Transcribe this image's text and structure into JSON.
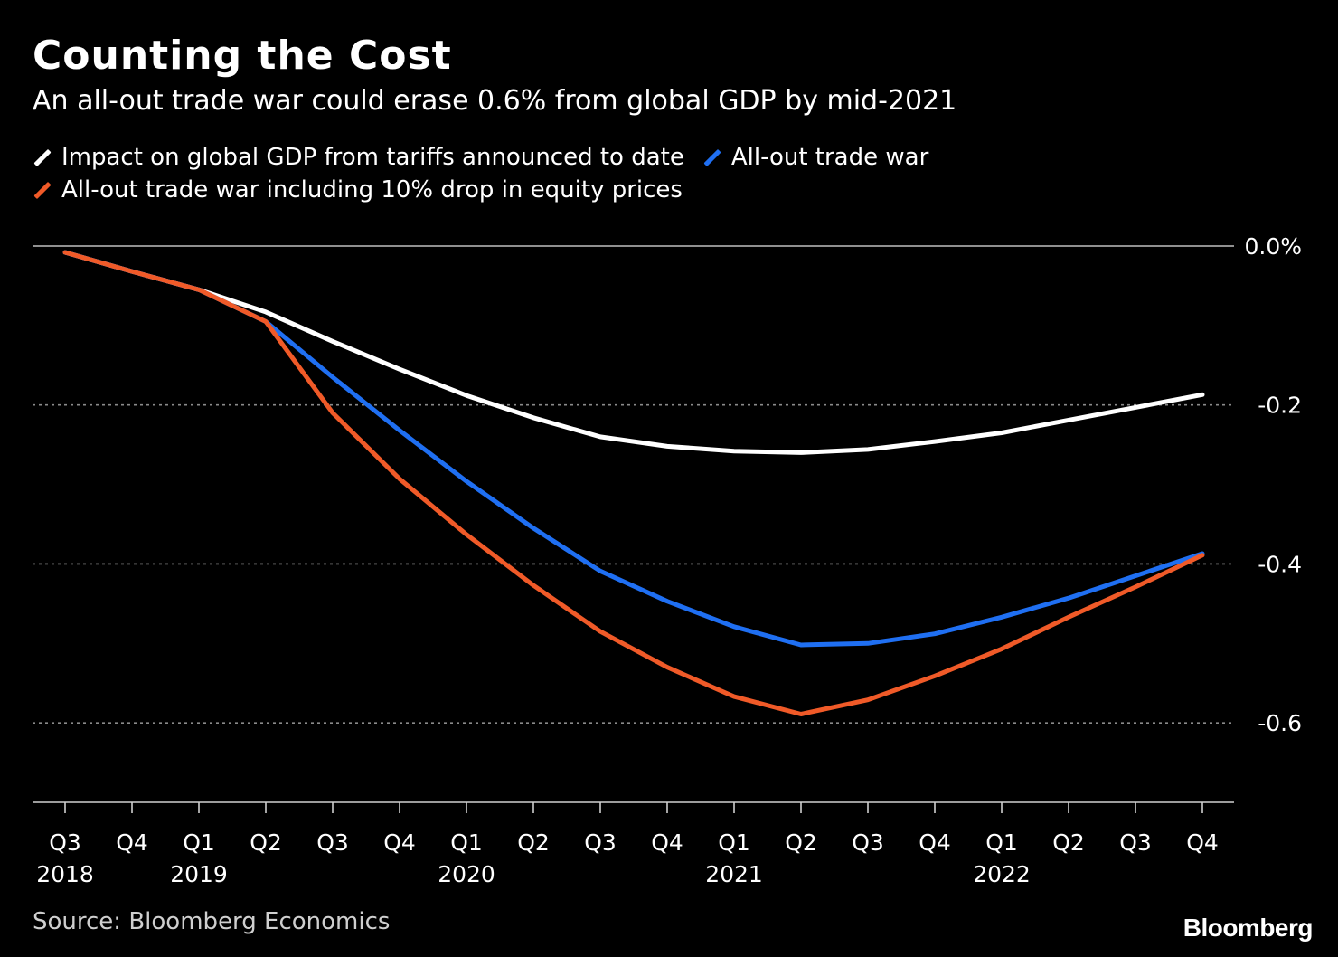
{
  "title": "Counting the Cost",
  "subtitle": "An all-out trade war could erase 0.6% from global GDP by mid-2021",
  "source": "Source: Bloomberg Economics",
  "brand": "Bloomberg",
  "colors": {
    "background": "#000000",
    "white_series": "#ffffff",
    "blue_series": "#1f6ff2",
    "orange_series": "#f05a28",
    "grid": "#8a8a8a"
  },
  "chart_data": {
    "type": "line",
    "x": [
      "Q3",
      "Q4",
      "Q1",
      "Q2",
      "Q3",
      "Q4",
      "Q1",
      "Q2",
      "Q3",
      "Q4",
      "Q1",
      "Q2",
      "Q3",
      "Q4",
      "Q1",
      "Q2",
      "Q3",
      "Q4"
    ],
    "x_year_labels": [
      {
        "index": 0,
        "label": "2018"
      },
      {
        "index": 2,
        "label": "2019"
      },
      {
        "index": 6,
        "label": "2020"
      },
      {
        "index": 10,
        "label": "2021"
      },
      {
        "index": 14,
        "label": "2022"
      }
    ],
    "series": [
      {
        "name": "Impact on global GDP from tariffs announced to date",
        "color": "#ffffff",
        "values": [
          -0.008,
          -0.032,
          -0.055,
          -0.083,
          -0.12,
          -0.155,
          -0.188,
          -0.216,
          -0.24,
          -0.252,
          -0.258,
          -0.26,
          -0.256,
          -0.246,
          -0.235,
          -0.219,
          -0.203,
          -0.187
        ]
      },
      {
        "name": "All-out trade war",
        "color": "#1f6ff2",
        "values": [
          -0.008,
          -0.032,
          -0.055,
          -0.095,
          -0.165,
          -0.232,
          -0.296,
          -0.355,
          -0.409,
          -0.447,
          -0.479,
          -0.502,
          -0.5,
          -0.488,
          -0.467,
          -0.443,
          -0.415,
          -0.387
        ]
      },
      {
        "name": "All-out trade war including 10% drop in equity prices",
        "color": "#f05a28",
        "values": [
          -0.008,
          -0.032,
          -0.055,
          -0.095,
          -0.21,
          -0.293,
          -0.363,
          -0.427,
          -0.485,
          -0.53,
          -0.567,
          -0.589,
          -0.571,
          -0.541,
          -0.507,
          -0.467,
          -0.429,
          -0.389
        ]
      }
    ],
    "yticks": [
      0.0,
      -0.2,
      -0.4,
      -0.6
    ],
    "ytick_labels": [
      "0.0%",
      "-0.2",
      "-0.4",
      "-0.6"
    ],
    "ylim": [
      -0.7,
      0.0
    ],
    "xlabel": "",
    "ylabel": "",
    "grid": true,
    "legend_position": "top-left"
  }
}
